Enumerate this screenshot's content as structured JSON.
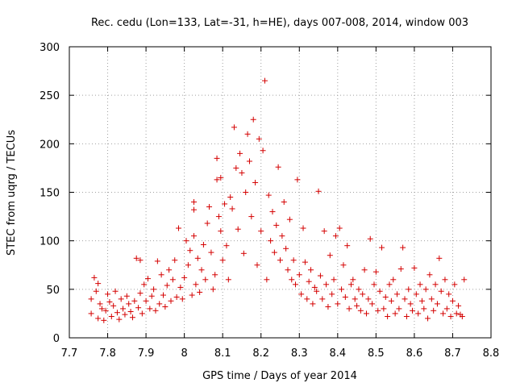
{
  "chart_data": {
    "type": "scatter",
    "title": "Rec. cedu (Lon=133, Lat=-31, h=HE), days 007-008, 2014, window 003",
    "xlabel": "GPS time / Days of year 2014",
    "ylabel": "STEC from uqrg / TECUs",
    "xlim": [
      7.7,
      8.8
    ],
    "ylim": [
      0,
      300
    ],
    "xticks": [
      "7.7",
      "7.8",
      "7.9",
      "8",
      "8.1",
      "8.2",
      "8.3",
      "8.4",
      "8.5",
      "8.6",
      "8.7",
      "8.8"
    ],
    "yticks": [
      "0",
      "50",
      "100",
      "150",
      "200",
      "250",
      "300"
    ],
    "grid": true,
    "marker": "+",
    "color": "#d40000",
    "series": [
      {
        "name": "STEC",
        "points": [
          [
            7.757,
            25
          ],
          [
            7.757,
            40
          ],
          [
            7.765,
            62
          ],
          [
            7.77,
            48
          ],
          [
            7.775,
            56
          ],
          [
            7.775,
            20
          ],
          [
            7.78,
            35
          ],
          [
            7.785,
            30
          ],
          [
            7.79,
            18
          ],
          [
            7.795,
            28
          ],
          [
            7.8,
            45
          ],
          [
            7.805,
            37
          ],
          [
            7.81,
            22
          ],
          [
            7.815,
            33
          ],
          [
            7.82,
            48
          ],
          [
            7.825,
            26
          ],
          [
            7.83,
            19
          ],
          [
            7.835,
            40
          ],
          [
            7.84,
            30
          ],
          [
            7.845,
            24
          ],
          [
            7.85,
            43
          ],
          [
            7.855,
            35
          ],
          [
            7.86,
            27
          ],
          [
            7.865,
            21
          ],
          [
            7.87,
            38
          ],
          [
            7.875,
            82
          ],
          [
            7.88,
            31
          ],
          [
            7.885,
            46
          ],
          [
            7.885,
            80
          ],
          [
            7.89,
            25
          ],
          [
            7.895,
            55
          ],
          [
            7.9,
            38
          ],
          [
            7.905,
            61
          ],
          [
            7.91,
            30
          ],
          [
            7.915,
            43
          ],
          [
            7.92,
            50
          ],
          [
            7.925,
            28
          ],
          [
            7.93,
            79
          ],
          [
            7.935,
            35
          ],
          [
            7.94,
            65
          ],
          [
            7.945,
            44
          ],
          [
            7.95,
            32
          ],
          [
            7.955,
            54
          ],
          [
            7.96,
            70
          ],
          [
            7.965,
            38
          ],
          [
            7.97,
            60
          ],
          [
            7.975,
            80
          ],
          [
            7.98,
            42
          ],
          [
            7.985,
            113
          ],
          [
            7.99,
            52
          ],
          [
            7.995,
            40
          ],
          [
            8.0,
            62
          ],
          [
            8.005,
            100
          ],
          [
            8.01,
            75
          ],
          [
            8.015,
            90
          ],
          [
            8.02,
            44
          ],
          [
            8.025,
            105
          ],
          [
            8.025,
            140
          ],
          [
            8.025,
            132
          ],
          [
            8.03,
            55
          ],
          [
            8.035,
            82
          ],
          [
            8.04,
            47
          ],
          [
            8.045,
            70
          ],
          [
            8.05,
            96
          ],
          [
            8.055,
            60
          ],
          [
            8.06,
            118
          ],
          [
            8.065,
            135
          ],
          [
            8.07,
            88
          ],
          [
            8.075,
            50
          ],
          [
            8.08,
            65
          ],
          [
            8.085,
            185
          ],
          [
            8.085,
            163
          ],
          [
            8.09,
            125
          ],
          [
            8.095,
            110
          ],
          [
            8.095,
            165
          ],
          [
            8.1,
            80
          ],
          [
            8.105,
            138
          ],
          [
            8.11,
            95
          ],
          [
            8.115,
            60
          ],
          [
            8.12,
            145
          ],
          [
            8.125,
            133
          ],
          [
            8.13,
            217
          ],
          [
            8.135,
            175
          ],
          [
            8.14,
            112
          ],
          [
            8.145,
            190
          ],
          [
            8.15,
            170
          ],
          [
            8.155,
            87
          ],
          [
            8.16,
            150
          ],
          [
            8.165,
            210
          ],
          [
            8.17,
            182
          ],
          [
            8.175,
            125
          ],
          [
            8.18,
            225
          ],
          [
            8.185,
            160
          ],
          [
            8.19,
            75
          ],
          [
            8.195,
            205
          ],
          [
            8.2,
            110
          ],
          [
            8.205,
            193
          ],
          [
            8.21,
            265
          ],
          [
            8.215,
            60
          ],
          [
            8.22,
            147
          ],
          [
            8.225,
            100
          ],
          [
            8.23,
            130
          ],
          [
            8.235,
            88
          ],
          [
            8.24,
            116
          ],
          [
            8.245,
            176
          ],
          [
            8.25,
            80
          ],
          [
            8.255,
            105
          ],
          [
            8.26,
            140
          ],
          [
            8.265,
            92
          ],
          [
            8.27,
            70
          ],
          [
            8.275,
            122
          ],
          [
            8.28,
            60
          ],
          [
            8.285,
            80
          ],
          [
            8.29,
            55
          ],
          [
            8.295,
            163
          ],
          [
            8.3,
            65
          ],
          [
            8.305,
            45
          ],
          [
            8.31,
            113
          ],
          [
            8.315,
            78
          ],
          [
            8.32,
            40
          ],
          [
            8.325,
            58
          ],
          [
            8.33,
            70
          ],
          [
            8.335,
            35
          ],
          [
            8.34,
            52
          ],
          [
            8.345,
            48
          ],
          [
            8.35,
            151
          ],
          [
            8.355,
            64
          ],
          [
            8.36,
            40
          ],
          [
            8.365,
            110
          ],
          [
            8.37,
            55
          ],
          [
            8.375,
            32
          ],
          [
            8.38,
            85
          ],
          [
            8.385,
            45
          ],
          [
            8.39,
            60
          ],
          [
            8.395,
            105
          ],
          [
            8.4,
            35
          ],
          [
            8.405,
            113
          ],
          [
            8.41,
            50
          ],
          [
            8.415,
            75
          ],
          [
            8.42,
            42
          ],
          [
            8.425,
            95
          ],
          [
            8.43,
            30
          ],
          [
            8.435,
            55
          ],
          [
            8.44,
            60
          ],
          [
            8.445,
            40
          ],
          [
            8.45,
            33
          ],
          [
            8.455,
            50
          ],
          [
            8.46,
            28
          ],
          [
            8.465,
            45
          ],
          [
            8.47,
            70
          ],
          [
            8.475,
            25
          ],
          [
            8.48,
            40
          ],
          [
            8.485,
            102
          ],
          [
            8.49,
            35
          ],
          [
            8.495,
            55
          ],
          [
            8.5,
            68
          ],
          [
            8.505,
            28
          ],
          [
            8.51,
            48
          ],
          [
            8.515,
            93
          ],
          [
            8.52,
            30
          ],
          [
            8.525,
            42
          ],
          [
            8.53,
            22
          ],
          [
            8.535,
            55
          ],
          [
            8.54,
            38
          ],
          [
            8.545,
            60
          ],
          [
            8.55,
            25
          ],
          [
            8.555,
            45
          ],
          [
            8.56,
            30
          ],
          [
            8.565,
            71
          ],
          [
            8.57,
            93
          ],
          [
            8.575,
            40
          ],
          [
            8.58,
            22
          ],
          [
            8.585,
            50
          ],
          [
            8.59,
            35
          ],
          [
            8.595,
            28
          ],
          [
            8.6,
            72
          ],
          [
            8.605,
            45
          ],
          [
            8.61,
            25
          ],
          [
            8.615,
            55
          ],
          [
            8.62,
            38
          ],
          [
            8.625,
            30
          ],
          [
            8.63,
            50
          ],
          [
            8.635,
            20
          ],
          [
            8.64,
            65
          ],
          [
            8.645,
            40
          ],
          [
            8.65,
            28
          ],
          [
            8.655,
            55
          ],
          [
            8.66,
            35
          ],
          [
            8.665,
            82
          ],
          [
            8.67,
            48
          ],
          [
            8.675,
            25
          ],
          [
            8.68,
            60
          ],
          [
            8.685,
            30
          ],
          [
            8.69,
            45
          ],
          [
            8.695,
            22
          ],
          [
            8.7,
            38
          ],
          [
            8.705,
            55
          ],
          [
            8.71,
            25
          ],
          [
            8.715,
            33
          ],
          [
            8.72,
            24
          ],
          [
            8.725,
            22
          ],
          [
            8.73,
            60
          ]
        ]
      }
    ]
  }
}
